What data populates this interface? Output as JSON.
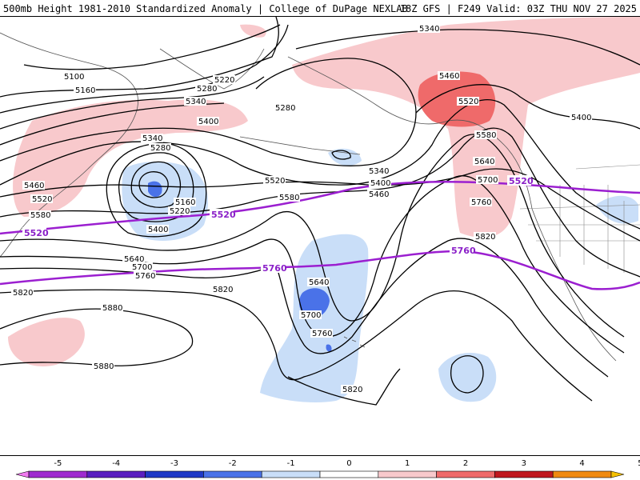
{
  "header": {
    "title_left": "500mb Height 1981-2010 Standardized Anomaly | College of DuPage NEXLAB",
    "title_right": "18Z GFS | F249 Valid: 03Z THU NOV 27 2025"
  },
  "map": {
    "contour_labels_black": [
      "5100",
      "5160",
      "5220",
      "5280",
      "5340",
      "5400",
      "5460",
      "5520",
      "5580",
      "5640",
      "5700",
      "5760",
      "5820",
      "5880"
    ],
    "contour_labels_purple": [
      "5520",
      "5760"
    ],
    "colors": {
      "contour": "#000000",
      "thick_contour": "#9b1fd0",
      "pos_anomaly_light": "#f8c9cc",
      "pos_anomaly_strong": "#ef6a6a",
      "neg_anomaly_light": "#c9def8",
      "neg_anomaly_strong": "#4a72e8",
      "coastline": "#555555"
    }
  },
  "legend": {
    "ticks": [
      "-5",
      "-4",
      "-3",
      "-2",
      "-1",
      "0",
      "1",
      "2",
      "3",
      "4",
      "5"
    ],
    "colors": [
      "#f17af0",
      "#9f2bcf",
      "#5a1fc0",
      "#1f39c6",
      "#4a72e8",
      "#c9def8",
      "#ffffff",
      "#f8c9cc",
      "#ef6a6a",
      "#c0181e",
      "#f08a10",
      "#f5c000"
    ]
  }
}
